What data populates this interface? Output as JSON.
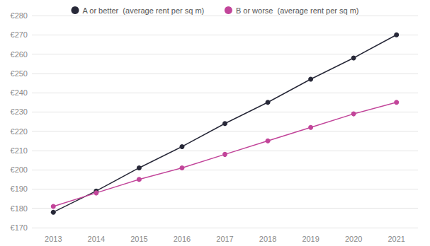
{
  "chart_data": {
    "type": "line",
    "categories": [
      "2013",
      "2014",
      "2015",
      "2016",
      "2017",
      "2018",
      "2019",
      "2020",
      "2021"
    ],
    "series": [
      {
        "name": "A or better  (average rent per sq m)",
        "color": "#272838",
        "marker": "circle",
        "values": [
          178,
          189,
          201,
          212,
          224,
          235,
          247,
          258,
          270
        ]
      },
      {
        "name": "B or worse  (average rent per sq m)",
        "color": "#c2459a",
        "marker": "circle",
        "values": [
          181,
          188,
          195,
          201,
          208,
          215,
          222,
          229,
          235
        ]
      }
    ],
    "ylim": [
      170,
      280
    ],
    "yticks": [
      {
        "value": 170,
        "label": "€170"
      },
      {
        "value": 180,
        "label": "€180"
      },
      {
        "value": 190,
        "label": "€190"
      },
      {
        "value": 200,
        "label": "€200"
      },
      {
        "value": 210,
        "label": "€210"
      },
      {
        "value": 220,
        "label": "€220"
      },
      {
        "value": 230,
        "label": "€230"
      },
      {
        "value": 240,
        "label": "€240"
      },
      {
        "value": 250,
        "label": "€250"
      },
      {
        "value": 260,
        "label": "€260"
      },
      {
        "value": 270,
        "label": "€270"
      },
      {
        "value": 280,
        "label": "€280"
      }
    ],
    "grid": true,
    "legend": "top"
  }
}
